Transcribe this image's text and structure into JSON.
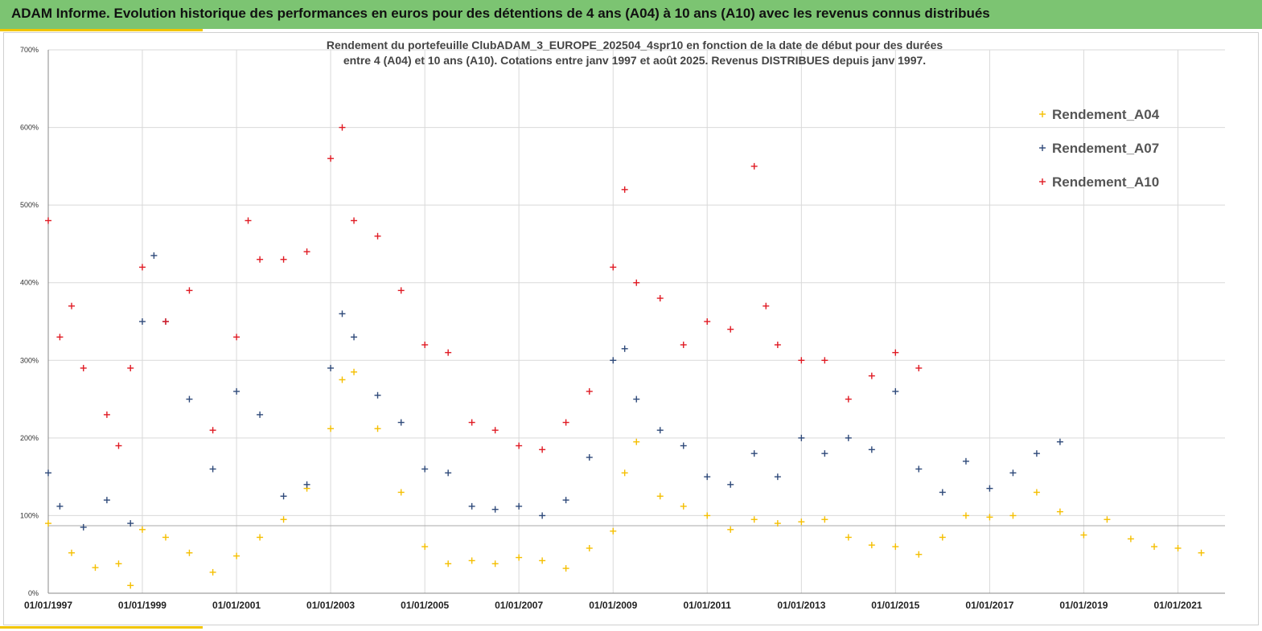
{
  "banner": {
    "title": "ADAM Informe. Evolution historique des performances en euros pour des détentions de 4 ans (A04) à 10 ans (A10) avec les revenus connus distribués"
  },
  "colors": {
    "banner_bg": "#7cc472",
    "accent": "#f2c500",
    "series_a04": "#f5bf00",
    "series_a07": "#2f4a7a",
    "series_a10": "#e01b24",
    "grid": "#d9d9d9"
  },
  "chart_data": {
    "type": "scatter",
    "title_lines": [
      "Rendement du portefeuille ClubADAM_3_EUROPE_202504_4spr10  en fonction de la date de début pour des durées",
      "entre 4 (A04) et 10 ans (A10). Cotations entre janv 1997 et août 2025. Revenus DISTRIBUES depuis janv 1997."
    ],
    "xlabel": "",
    "ylabel": "",
    "x_type": "date",
    "xlim": [
      "1997-01-01",
      "2022-01-01"
    ],
    "ylim": [
      0,
      7
    ],
    "y_format": "percent",
    "y_ticks": [
      "0%",
      "100%",
      "200%",
      "300%",
      "400%",
      "500%",
      "600%",
      "700%"
    ],
    "x_ticks": [
      "01/01/1997",
      "01/01/1999",
      "01/01/2001",
      "01/01/2003",
      "01/01/2005",
      "01/01/2007",
      "01/01/2009",
      "01/01/2011",
      "01/01/2013",
      "01/01/2015",
      "01/01/2017",
      "01/01/2019",
      "01/01/2021"
    ],
    "grid": true,
    "legend_position": "top-right",
    "reference_line_y": 0.87,
    "series": [
      {
        "name": "Rendement_A04",
        "color": "#f5bf00",
        "x": [
          "1997-01-01",
          "1997-07-01",
          "1998-01-01",
          "1998-07-01",
          "1998-10-01",
          "1999-01-01",
          "1999-07-01",
          "2000-01-01",
          "2000-07-01",
          "2001-01-01",
          "2001-07-01",
          "2002-01-01",
          "2002-07-01",
          "2003-01-01",
          "2003-04-01",
          "2003-07-01",
          "2004-01-01",
          "2004-07-01",
          "2005-01-01",
          "2005-07-01",
          "2006-01-01",
          "2006-07-01",
          "2007-01-01",
          "2007-07-01",
          "2008-01-01",
          "2008-07-01",
          "2009-01-01",
          "2009-04-01",
          "2009-07-01",
          "2010-01-01",
          "2010-07-01",
          "2011-01-01",
          "2011-07-01",
          "2012-01-01",
          "2012-07-01",
          "2013-01-01",
          "2013-07-01",
          "2014-01-01",
          "2014-07-01",
          "2015-01-01",
          "2015-07-01",
          "2016-01-01",
          "2016-07-01",
          "2017-01-01",
          "2017-07-01",
          "2018-01-01",
          "2018-07-01",
          "2019-01-01",
          "2019-07-01",
          "2020-01-01",
          "2020-07-01",
          "2021-01-01",
          "2021-07-01"
        ],
        "y": [
          0.9,
          0.52,
          0.33,
          0.38,
          0.1,
          0.82,
          0.72,
          0.52,
          0.27,
          0.48,
          0.72,
          0.95,
          1.35,
          2.12,
          2.75,
          2.85,
          2.12,
          1.3,
          0.6,
          0.38,
          0.42,
          0.38,
          0.46,
          0.42,
          0.32,
          0.58,
          0.8,
          1.55,
          1.95,
          1.25,
          1.12,
          1.0,
          0.82,
          0.95,
          0.9,
          0.92,
          0.95,
          0.72,
          0.62,
          0.6,
          0.5,
          0.72,
          1.0,
          0.98,
          1.0,
          1.3,
          1.05,
          0.75,
          0.95,
          0.7,
          0.6,
          0.58,
          0.52
        ]
      },
      {
        "name": "Rendement_A07",
        "color": "#2f4a7a",
        "x": [
          "1997-01-01",
          "1997-04-01",
          "1997-10-01",
          "1998-04-01",
          "1998-10-01",
          "1999-01-01",
          "1999-04-01",
          "1999-07-01",
          "2000-01-01",
          "2000-07-01",
          "2001-01-01",
          "2001-07-01",
          "2002-01-01",
          "2002-07-01",
          "2003-01-01",
          "2003-04-01",
          "2003-07-01",
          "2004-01-01",
          "2004-07-01",
          "2005-01-01",
          "2005-07-01",
          "2006-01-01",
          "2006-07-01",
          "2007-01-01",
          "2007-07-01",
          "2008-01-01",
          "2008-07-01",
          "2009-01-01",
          "2009-04-01",
          "2009-07-01",
          "2010-01-01",
          "2010-07-01",
          "2011-01-01",
          "2011-07-01",
          "2012-01-01",
          "2012-07-01",
          "2013-01-01",
          "2013-07-01",
          "2014-01-01",
          "2014-07-01",
          "2015-01-01",
          "2015-07-01",
          "2016-01-01",
          "2016-07-01",
          "2017-01-01",
          "2017-07-01",
          "2018-01-01",
          "2018-07-01"
        ],
        "y": [
          1.55,
          1.12,
          0.85,
          1.2,
          0.9,
          3.5,
          4.35,
          3.5,
          2.5,
          1.6,
          2.6,
          2.3,
          1.25,
          1.4,
          2.9,
          3.6,
          3.3,
          2.55,
          2.2,
          1.6,
          1.55,
          1.12,
          1.08,
          1.12,
          1.0,
          1.2,
          1.75,
          3.0,
          3.15,
          2.5,
          2.1,
          1.9,
          1.5,
          1.4,
          1.8,
          1.5,
          2.0,
          1.8,
          2.0,
          1.85,
          2.6,
          1.6,
          1.3,
          1.7,
          1.35,
          1.55,
          1.8,
          1.95
        ]
      },
      {
        "name": "Rendement_A10",
        "color": "#e01b24",
        "x": [
          "1997-01-01",
          "1997-04-01",
          "1997-07-01",
          "1997-10-01",
          "1998-04-01",
          "1998-07-01",
          "1998-10-01",
          "1999-01-01",
          "1999-07-01",
          "2000-01-01",
          "2000-07-01",
          "2001-01-01",
          "2001-04-01",
          "2001-07-01",
          "2002-01-01",
          "2002-07-01",
          "2003-01-01",
          "2003-04-01",
          "2003-07-01",
          "2004-01-01",
          "2004-07-01",
          "2005-01-01",
          "2005-07-01",
          "2006-01-01",
          "2006-07-01",
          "2007-01-01",
          "2007-07-01",
          "2008-01-01",
          "2008-07-01",
          "2009-01-01",
          "2009-04-01",
          "2009-07-01",
          "2010-01-01",
          "2010-07-01",
          "2011-01-01",
          "2011-07-01",
          "2012-01-01",
          "2012-04-01",
          "2012-07-01",
          "2013-01-01",
          "2013-07-01",
          "2014-01-01",
          "2014-07-01",
          "2015-01-01",
          "2015-07-01"
        ],
        "y": [
          4.8,
          3.3,
          3.7,
          2.9,
          2.3,
          1.9,
          2.9,
          4.2,
          3.5,
          3.9,
          2.1,
          3.3,
          4.8,
          4.3,
          4.3,
          4.4,
          5.6,
          6.0,
          4.8,
          4.6,
          3.9,
          3.2,
          3.1,
          2.2,
          2.1,
          1.9,
          1.85,
          2.2,
          2.6,
          4.2,
          5.2,
          4.0,
          3.8,
          3.2,
          3.5,
          3.4,
          5.5,
          3.7,
          3.2,
          3.0,
          3.0,
          2.5,
          2.8,
          3.1,
          2.9
        ]
      }
    ]
  }
}
